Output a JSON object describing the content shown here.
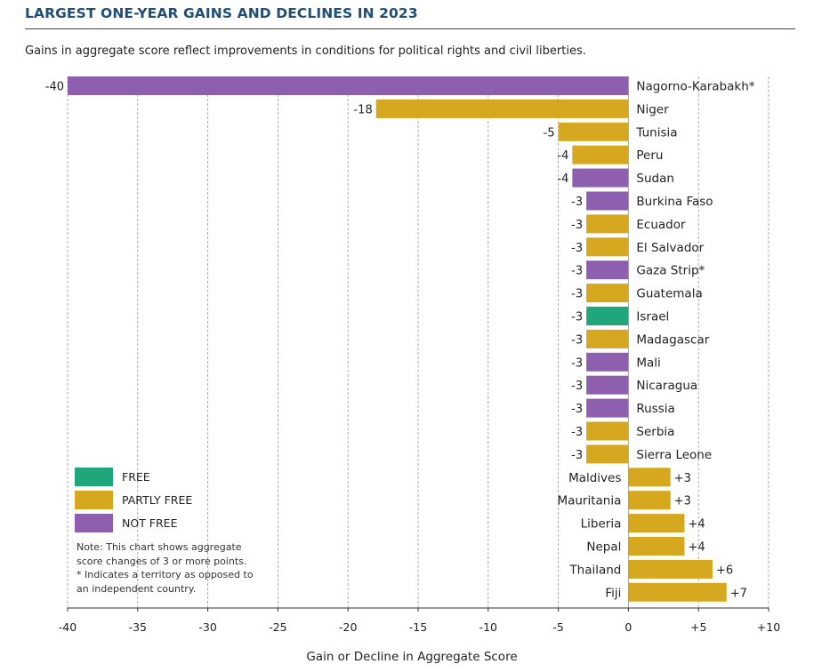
{
  "title": "LARGEST ONE-YEAR GAINS AND DECLINES IN 2023",
  "subtitle": "Gains in aggregate score reflect improvements in conditions for political rights and civil liberties.",
  "colors": {
    "FREE": "#1fa67a",
    "PARTLY FREE": "#d5a81f",
    "NOT FREE": "#8e5faf",
    "title": "#1f4e79"
  },
  "legend": [
    {
      "status": "FREE",
      "label": "FREE"
    },
    {
      "status": "PARTLY FREE",
      "label": "PARTLY FREE"
    },
    {
      "status": "NOT FREE",
      "label": "NOT FREE"
    }
  ],
  "note": {
    "line1": "Note: This chart shows aggregate score changes of 3 or more points.",
    "line2": "* Indicates a territory as opposed to an independent country."
  },
  "chart_data": {
    "type": "bar",
    "orientation": "horizontal",
    "xlabel": "Gain or Decline in Aggregate Score",
    "xlim": [
      -40,
      10
    ],
    "xticks": [
      -40,
      -35,
      -30,
      -25,
      -20,
      -15,
      -10,
      -5,
      0,
      5,
      10
    ],
    "xtick_labels": [
      "-40",
      "-35",
      "-30",
      "-25",
      "-20",
      "-15",
      "-10",
      "-5",
      "0",
      "+5",
      "+10"
    ],
    "grid": "vertical dashed",
    "legend_position": "bottom-left",
    "bars": [
      {
        "label": "Nagorno-Karabakh*",
        "value": -40,
        "value_label": "-40",
        "status": "NOT FREE"
      },
      {
        "label": "Niger",
        "value": -18,
        "value_label": "-18",
        "status": "PARTLY FREE"
      },
      {
        "label": "Tunisia",
        "value": -5,
        "value_label": "-5",
        "status": "PARTLY FREE"
      },
      {
        "label": "Peru",
        "value": -4,
        "value_label": "-4",
        "status": "PARTLY FREE"
      },
      {
        "label": "Sudan",
        "value": -4,
        "value_label": "-4",
        "status": "NOT FREE"
      },
      {
        "label": "Burkina Faso",
        "value": -3,
        "value_label": "-3",
        "status": "NOT FREE"
      },
      {
        "label": "Ecuador",
        "value": -3,
        "value_label": "-3",
        "status": "PARTLY FREE"
      },
      {
        "label": "El Salvador",
        "value": -3,
        "value_label": "-3",
        "status": "PARTLY FREE"
      },
      {
        "label": "Gaza Strip*",
        "value": -3,
        "value_label": "-3",
        "status": "NOT FREE"
      },
      {
        "label": "Guatemala",
        "value": -3,
        "value_label": "-3",
        "status": "PARTLY FREE"
      },
      {
        "label": "Israel",
        "value": -3,
        "value_label": "-3",
        "status": "FREE"
      },
      {
        "label": "Madagascar",
        "value": -3,
        "value_label": "-3",
        "status": "PARTLY FREE"
      },
      {
        "label": "Mali",
        "value": -3,
        "value_label": "-3",
        "status": "NOT FREE"
      },
      {
        "label": "Nicaragua",
        "value": -3,
        "value_label": "-3",
        "status": "NOT FREE"
      },
      {
        "label": "Russia",
        "value": -3,
        "value_label": "-3",
        "status": "NOT FREE"
      },
      {
        "label": "Serbia",
        "value": -3,
        "value_label": "-3",
        "status": "PARTLY FREE"
      },
      {
        "label": "Sierra Leone",
        "value": -3,
        "value_label": "-3",
        "status": "PARTLY FREE"
      },
      {
        "label": "Maldives",
        "value": 3,
        "value_label": "+3",
        "status": "PARTLY FREE"
      },
      {
        "label": "Mauritania",
        "value": 3,
        "value_label": "+3",
        "status": "PARTLY FREE"
      },
      {
        "label": "Liberia",
        "value": 4,
        "value_label": "+4",
        "status": "PARTLY FREE"
      },
      {
        "label": "Nepal",
        "value": 4,
        "value_label": "+4",
        "status": "PARTLY FREE"
      },
      {
        "label": "Thailand",
        "value": 6,
        "value_label": "+6",
        "status": "PARTLY FREE"
      },
      {
        "label": "Fiji",
        "value": 7,
        "value_label": "+7",
        "status": "PARTLY FREE"
      }
    ]
  }
}
